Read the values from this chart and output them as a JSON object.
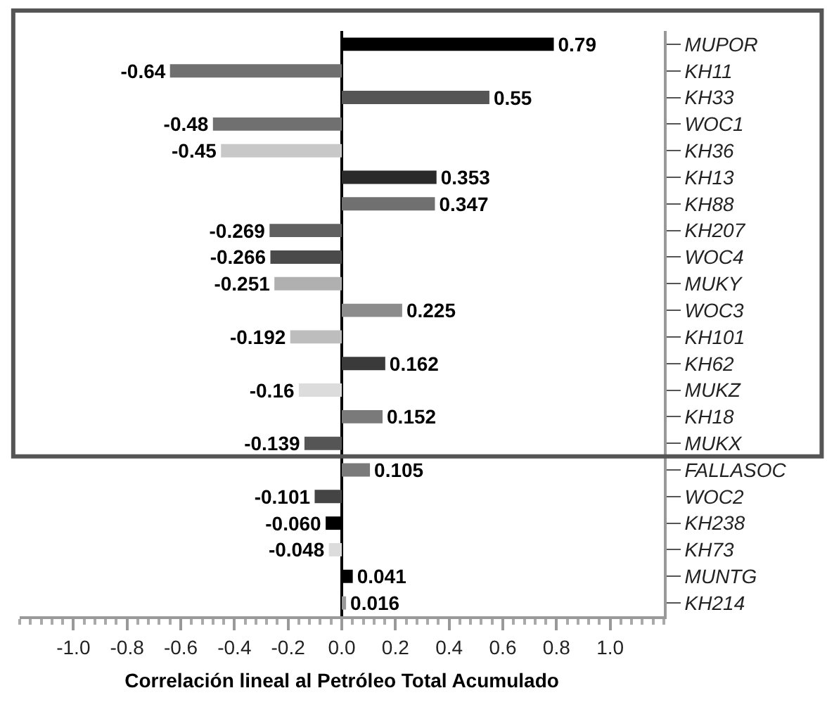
{
  "chart_data": {
    "type": "bar",
    "orientation": "horizontal",
    "xlabel": "Correlación lineal al Petróleo Total Acumulado",
    "categories": [
      "MUPOR",
      "KH11",
      "KH33",
      "WOC1",
      "KH36",
      "KH13",
      "KH88",
      "KH207",
      "WOC4",
      "MUKY",
      "WOC3",
      "KH101",
      "KH62",
      "MUKZ",
      "KH18",
      "MUKX",
      "FALLASOC",
      "WOC2",
      "KH238",
      "KH73",
      "MUNTG",
      "KH214"
    ],
    "values": [
      0.79,
      -0.64,
      0.55,
      -0.48,
      -0.45,
      0.353,
      0.347,
      -0.269,
      -0.266,
      -0.251,
      0.225,
      -0.192,
      0.162,
      -0.16,
      0.152,
      -0.139,
      0.105,
      -0.101,
      -0.06,
      -0.048,
      0.041,
      0.016
    ],
    "value_labels": [
      "0.79",
      "-0.64",
      "0.55",
      "-0.48",
      "-0.45",
      "0.353",
      "0.347",
      "-0.269",
      "-0.266",
      "-0.251",
      "0.225",
      "-0.192",
      "0.162",
      "-0.16",
      "0.152",
      "-0.139",
      "0.105",
      "-0.101",
      "-0.060",
      "-0.048",
      "0.041",
      "0.016"
    ],
    "colors": [
      "#000000",
      "#707070",
      "#555555",
      "#707070",
      "#c8c8c8",
      "#2a2a2a",
      "#707070",
      "#606060",
      "#4a4a4a",
      "#b0b0b0",
      "#8c8c8c",
      "#bdbdbd",
      "#3a3a3a",
      "#dcdcdc",
      "#7a7a7a",
      "#555555",
      "#7a7a7a",
      "#444444",
      "#000000",
      "#dcdcdc",
      "#000000",
      "#9a9a9a"
    ],
    "xlim": [
      -1.2,
      1.2
    ],
    "xticks": [
      {
        "value": -1,
        "label": "-1.0"
      },
      {
        "value": -0.8,
        "label": "-0.8"
      },
      {
        "value": -0.6,
        "label": "-0.6"
      },
      {
        "value": -0.4,
        "label": "-0.4"
      },
      {
        "value": -0.2,
        "label": "-0.2"
      },
      {
        "value": 0,
        "label": "0.0"
      },
      {
        "value": 0.2,
        "label": "0.2"
      },
      {
        "value": 0.4,
        "label": "0.4"
      },
      {
        "value": 0.6,
        "label": "0.6"
      },
      {
        "value": 0.8,
        "label": "0.8"
      },
      {
        "value": 1,
        "label": "1.0"
      }
    ],
    "legend": false
  }
}
